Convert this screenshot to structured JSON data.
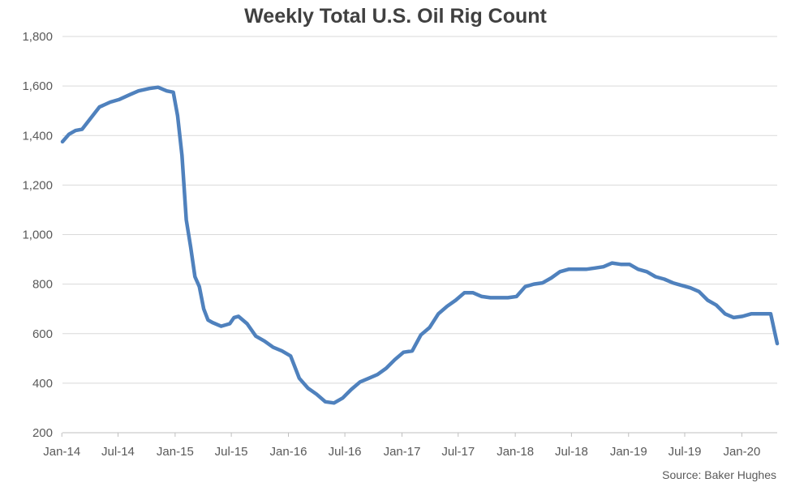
{
  "chart_data": {
    "type": "line",
    "title": "Weekly Total U.S. Oil Rig Count",
    "xlabel": "",
    "ylabel": "",
    "source": "Source: Baker Hughes",
    "ylim": [
      200,
      1800
    ],
    "y_ticks": [
      200,
      400,
      600,
      800,
      1000,
      1200,
      1400,
      1600,
      1800
    ],
    "y_tick_labels": [
      "200",
      "400",
      "600",
      "800",
      "1,000",
      "1,200",
      "1,400",
      "1,600",
      "1,800"
    ],
    "x_ticks": [
      "Jan-14",
      "Jul-14",
      "Jan-15",
      "Jul-15",
      "Jan-16",
      "Jul-16",
      "Jan-17",
      "Jul-17",
      "Jan-18",
      "Jul-18",
      "Jan-19",
      "Jul-19",
      "Jan-20"
    ],
    "xlim": [
      "2014-01-03",
      "2020-04-24"
    ],
    "grid": "horizontal",
    "line_color": "#4f81bd",
    "series": [
      {
        "x": [
          "2014-01-03",
          "2014-01-24",
          "2014-02-14",
          "2014-03-07",
          "2014-04-04",
          "2014-05-02",
          "2014-06-06",
          "2014-07-04",
          "2014-08-08",
          "2014-09-05",
          "2014-10-10",
          "2014-11-07",
          "2014-12-05",
          "2014-12-26",
          "2015-01-09",
          "2015-01-23",
          "2015-02-06",
          "2015-02-20",
          "2015-03-06",
          "2015-03-20",
          "2015-04-03",
          "2015-04-17",
          "2015-05-01",
          "2015-05-29",
          "2015-06-26",
          "2015-07-10",
          "2015-07-24",
          "2015-08-21",
          "2015-09-18",
          "2015-10-16",
          "2015-11-13",
          "2015-12-11",
          "2016-01-08",
          "2016-02-05",
          "2016-03-04",
          "2016-04-01",
          "2016-04-29",
          "2016-05-27",
          "2016-06-24",
          "2016-07-22",
          "2016-08-19",
          "2016-09-16",
          "2016-10-14",
          "2016-11-11",
          "2016-12-09",
          "2017-01-06",
          "2017-02-03",
          "2017-03-03",
          "2017-03-31",
          "2017-04-28",
          "2017-05-26",
          "2017-06-23",
          "2017-07-21",
          "2017-08-18",
          "2017-09-15",
          "2017-10-13",
          "2017-11-10",
          "2017-12-08",
          "2018-01-05",
          "2018-02-02",
          "2018-03-02",
          "2018-03-30",
          "2018-04-27",
          "2018-05-25",
          "2018-06-22",
          "2018-07-20",
          "2018-08-17",
          "2018-09-14",
          "2018-10-12",
          "2018-11-09",
          "2018-12-07",
          "2019-01-04",
          "2019-02-01",
          "2019-03-01",
          "2019-03-29",
          "2019-04-26",
          "2019-05-24",
          "2019-06-21",
          "2019-07-19",
          "2019-08-16",
          "2019-09-13",
          "2019-10-11",
          "2019-11-08",
          "2019-12-06",
          "2020-01-03",
          "2020-01-31",
          "2020-02-28",
          "2020-03-20",
          "2020-04-03",
          "2020-04-17",
          "2020-04-24"
        ],
        "values": [
          1375,
          1405,
          1420,
          1425,
          1470,
          1515,
          1535,
          1545,
          1565,
          1580,
          1590,
          1595,
          1580,
          1575,
          1480,
          1320,
          1060,
          950,
          830,
          790,
          700,
          655,
          645,
          630,
          640,
          665,
          670,
          640,
          590,
          570,
          545,
          530,
          510,
          420,
          380,
          355,
          325,
          320,
          340,
          375,
          405,
          420,
          435,
          460,
          495,
          525,
          530,
          595,
          625,
          680,
          710,
          735,
          765,
          765,
          750,
          745,
          745,
          745,
          750,
          790,
          800,
          805,
          825,
          850,
          860,
          860,
          860,
          865,
          870,
          885,
          880,
          880,
          860,
          850,
          830,
          820,
          805,
          795,
          785,
          770,
          735,
          715,
          680,
          665,
          670,
          680,
          680,
          680,
          680,
          600,
          560
        ]
      }
    ]
  }
}
